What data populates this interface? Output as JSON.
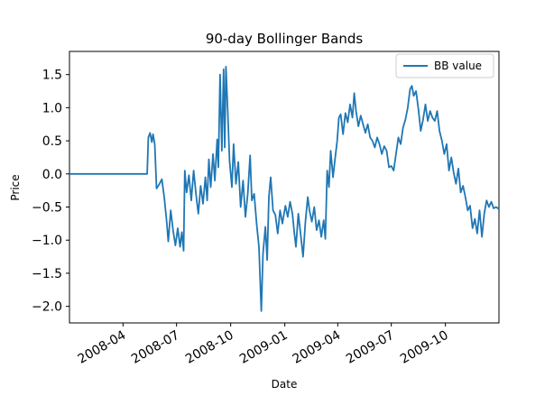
{
  "chart_data": {
    "type": "line",
    "title": "90-day Bollinger Bands",
    "xlabel": "Date",
    "ylabel": "Price",
    "legend": {
      "placement": "top-right"
    },
    "xlim": [
      "2008-01-01",
      "2009-12-31"
    ],
    "ylim": [
      -2.25,
      1.85
    ],
    "grid": false,
    "x_ticks": [
      {
        "date": "2008-04-01",
        "label": "2008-04"
      },
      {
        "date": "2008-07-01",
        "label": "2008-07"
      },
      {
        "date": "2008-10-01",
        "label": "2008-10"
      },
      {
        "date": "2009-01-01",
        "label": "2009-01"
      },
      {
        "date": "2009-04-01",
        "label": "2009-04"
      },
      {
        "date": "2009-07-01",
        "label": "2009-07"
      },
      {
        "date": "2009-10-01",
        "label": "2009-10"
      }
    ],
    "y_ticks": [
      {
        "value": 1.5,
        "label": "1.5"
      },
      {
        "value": 1.0,
        "label": "1.0"
      },
      {
        "value": 0.5,
        "label": "0.5"
      },
      {
        "value": 0.0,
        "label": "0.0"
      },
      {
        "value": -0.5,
        "label": "−0.5"
      },
      {
        "value": -1.0,
        "label": "−1.0"
      },
      {
        "value": -1.5,
        "label": "−1.5"
      },
      {
        "value": -2.0,
        "label": "−2.0"
      }
    ],
    "series": [
      {
        "name": "BB value",
        "color": "#1f77b4",
        "points": [
          [
            "2008-01-01",
            0.0
          ],
          [
            "2008-05-12",
            0.0
          ],
          [
            "2008-05-14",
            0.55
          ],
          [
            "2008-05-17",
            0.62
          ],
          [
            "2008-05-20",
            0.48
          ],
          [
            "2008-05-22",
            0.6
          ],
          [
            "2008-05-25",
            0.45
          ],
          [
            "2008-05-28",
            -0.22
          ],
          [
            "2008-06-02",
            -0.15
          ],
          [
            "2008-06-06",
            -0.08
          ],
          [
            "2008-06-10",
            -0.35
          ],
          [
            "2008-06-14",
            -0.7
          ],
          [
            "2008-06-17",
            -1.02
          ],
          [
            "2008-06-21",
            -0.55
          ],
          [
            "2008-06-25",
            -0.85
          ],
          [
            "2008-06-29",
            -1.08
          ],
          [
            "2008-07-03",
            -0.82
          ],
          [
            "2008-07-07",
            -1.1
          ],
          [
            "2008-07-10",
            -0.88
          ],
          [
            "2008-07-13",
            -1.16
          ],
          [
            "2008-07-15",
            0.05
          ],
          [
            "2008-07-18",
            -0.28
          ],
          [
            "2008-07-22",
            -0.02
          ],
          [
            "2008-07-26",
            -0.4
          ],
          [
            "2008-07-30",
            0.05
          ],
          [
            "2008-08-03",
            -0.3
          ],
          [
            "2008-08-07",
            -0.6
          ],
          [
            "2008-08-11",
            -0.18
          ],
          [
            "2008-08-15",
            -0.45
          ],
          [
            "2008-08-19",
            -0.05
          ],
          [
            "2008-08-22",
            -0.4
          ],
          [
            "2008-08-25",
            0.22
          ],
          [
            "2008-08-28",
            -0.2
          ],
          [
            "2008-09-01",
            0.3
          ],
          [
            "2008-09-04",
            -0.1
          ],
          [
            "2008-09-08",
            0.52
          ],
          [
            "2008-09-10",
            0.1
          ],
          [
            "2008-09-13",
            1.5
          ],
          [
            "2008-09-16",
            0.35
          ],
          [
            "2008-09-19",
            1.58
          ],
          [
            "2008-09-21",
            0.4
          ],
          [
            "2008-09-23",
            1.62
          ],
          [
            "2008-09-26",
            0.95
          ],
          [
            "2008-09-29",
            0.2
          ],
          [
            "2008-10-03",
            -0.2
          ],
          [
            "2008-10-06",
            0.45
          ],
          [
            "2008-10-10",
            -0.15
          ],
          [
            "2008-10-14",
            0.18
          ],
          [
            "2008-10-18",
            -0.5
          ],
          [
            "2008-10-22",
            -0.1
          ],
          [
            "2008-10-26",
            -0.65
          ],
          [
            "2008-10-30",
            -0.3
          ],
          [
            "2008-11-03",
            0.28
          ],
          [
            "2008-11-06",
            -0.4
          ],
          [
            "2008-11-10",
            -0.3
          ],
          [
            "2008-11-14",
            -0.75
          ],
          [
            "2008-11-18",
            -1.1
          ],
          [
            "2008-11-22",
            -2.07
          ],
          [
            "2008-11-25",
            -1.2
          ],
          [
            "2008-11-29",
            -0.8
          ],
          [
            "2008-12-02",
            -1.3
          ],
          [
            "2008-12-05",
            -0.35
          ],
          [
            "2008-12-08",
            -0.05
          ],
          [
            "2008-12-12",
            -0.55
          ],
          [
            "2008-12-16",
            -0.62
          ],
          [
            "2008-12-20",
            -0.9
          ],
          [
            "2008-12-24",
            -0.55
          ],
          [
            "2008-12-28",
            -0.75
          ],
          [
            "2009-01-02",
            -0.48
          ],
          [
            "2009-01-06",
            -0.65
          ],
          [
            "2009-01-10",
            -0.42
          ],
          [
            "2009-01-14",
            -0.6
          ],
          [
            "2009-01-17",
            -0.88
          ],
          [
            "2009-01-20",
            -1.1
          ],
          [
            "2009-01-24",
            -0.6
          ],
          [
            "2009-01-28",
            -0.92
          ],
          [
            "2009-02-01",
            -1.25
          ],
          [
            "2009-02-05",
            -0.72
          ],
          [
            "2009-02-09",
            -0.35
          ],
          [
            "2009-02-12",
            -0.55
          ],
          [
            "2009-02-16",
            -0.72
          ],
          [
            "2009-02-20",
            -0.5
          ],
          [
            "2009-02-24",
            -0.85
          ],
          [
            "2009-02-28",
            -0.7
          ],
          [
            "2009-03-04",
            -0.95
          ],
          [
            "2009-03-08",
            -0.7
          ],
          [
            "2009-03-11",
            -0.98
          ],
          [
            "2009-03-14",
            0.05
          ],
          [
            "2009-03-17",
            -0.2
          ],
          [
            "2009-03-20",
            0.35
          ],
          [
            "2009-03-24",
            -0.05
          ],
          [
            "2009-03-27",
            0.2
          ],
          [
            "2009-03-31",
            0.5
          ],
          [
            "2009-04-03",
            0.85
          ],
          [
            "2009-04-06",
            0.9
          ],
          [
            "2009-04-10",
            0.6
          ],
          [
            "2009-04-14",
            0.92
          ],
          [
            "2009-04-18",
            0.78
          ],
          [
            "2009-04-22",
            1.05
          ],
          [
            "2009-04-26",
            0.85
          ],
          [
            "2009-04-29",
            1.22
          ],
          [
            "2009-05-02",
            0.95
          ],
          [
            "2009-05-06",
            0.72
          ],
          [
            "2009-05-10",
            0.88
          ],
          [
            "2009-05-14",
            0.75
          ],
          [
            "2009-05-18",
            0.62
          ],
          [
            "2009-05-22",
            0.75
          ],
          [
            "2009-05-26",
            0.55
          ],
          [
            "2009-05-30",
            0.5
          ],
          [
            "2009-06-03",
            0.4
          ],
          [
            "2009-06-07",
            0.55
          ],
          [
            "2009-06-11",
            0.45
          ],
          [
            "2009-06-15",
            0.3
          ],
          [
            "2009-06-19",
            0.42
          ],
          [
            "2009-06-23",
            0.35
          ],
          [
            "2009-06-27",
            0.1
          ],
          [
            "2009-07-01",
            0.12
          ],
          [
            "2009-07-05",
            0.05
          ],
          [
            "2009-07-09",
            0.3
          ],
          [
            "2009-07-13",
            0.55
          ],
          [
            "2009-07-17",
            0.45
          ],
          [
            "2009-07-21",
            0.7
          ],
          [
            "2009-07-25",
            0.82
          ],
          [
            "2009-07-29",
            1.0
          ],
          [
            "2009-08-02",
            1.28
          ],
          [
            "2009-08-05",
            1.33
          ],
          [
            "2009-08-08",
            1.18
          ],
          [
            "2009-08-12",
            1.25
          ],
          [
            "2009-08-16",
            0.98
          ],
          [
            "2009-08-20",
            0.65
          ],
          [
            "2009-08-24",
            0.82
          ],
          [
            "2009-08-28",
            1.05
          ],
          [
            "2009-09-01",
            0.8
          ],
          [
            "2009-09-05",
            0.95
          ],
          [
            "2009-09-09",
            0.85
          ],
          [
            "2009-09-13",
            0.8
          ],
          [
            "2009-09-17",
            0.95
          ],
          [
            "2009-09-21",
            0.65
          ],
          [
            "2009-09-25",
            0.5
          ],
          [
            "2009-09-29",
            0.3
          ],
          [
            "2009-10-03",
            0.45
          ],
          [
            "2009-10-07",
            0.05
          ],
          [
            "2009-10-11",
            0.25
          ],
          [
            "2009-10-15",
            0.02
          ],
          [
            "2009-10-19",
            -0.15
          ],
          [
            "2009-10-23",
            0.08
          ],
          [
            "2009-10-27",
            -0.28
          ],
          [
            "2009-10-31",
            -0.18
          ],
          [
            "2009-11-04",
            -0.35
          ],
          [
            "2009-11-08",
            -0.55
          ],
          [
            "2009-11-12",
            -0.48
          ],
          [
            "2009-11-16",
            -0.82
          ],
          [
            "2009-11-20",
            -0.68
          ],
          [
            "2009-11-24",
            -0.9
          ],
          [
            "2009-11-28",
            -0.55
          ],
          [
            "2009-12-02",
            -0.95
          ],
          [
            "2009-12-06",
            -0.6
          ],
          [
            "2009-12-10",
            -0.4
          ],
          [
            "2009-12-14",
            -0.5
          ],
          [
            "2009-12-18",
            -0.42
          ],
          [
            "2009-12-22",
            -0.52
          ],
          [
            "2009-12-26",
            -0.5
          ],
          [
            "2009-12-31",
            -0.53
          ]
        ]
      }
    ]
  }
}
